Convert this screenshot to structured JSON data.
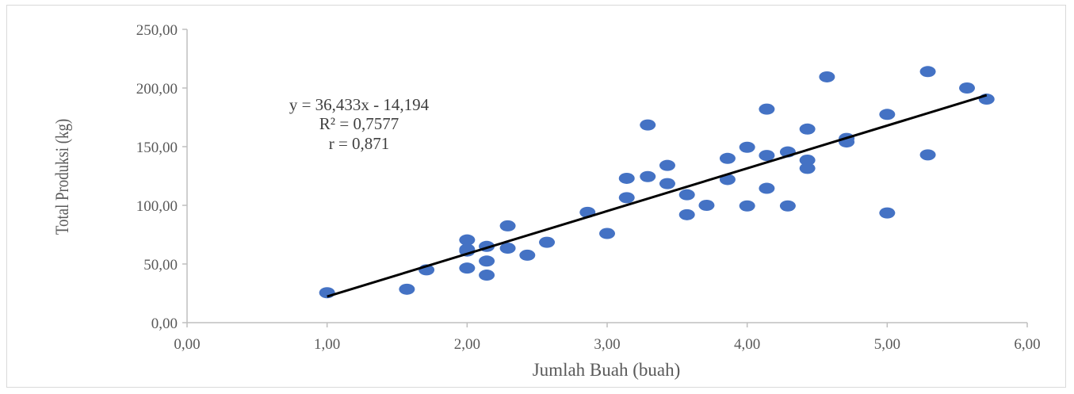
{
  "chart_data": {
    "type": "scatter",
    "xlabel": "Jumlah Buah (buah)",
    "ylabel": "Total Produksi (kg)",
    "xlim": [
      0,
      6
    ],
    "ylim": [
      0,
      250
    ],
    "x_ticks": [
      "0,00",
      "1,00",
      "2,00",
      "3,00",
      "4,00",
      "5,00",
      "6,00"
    ],
    "y_ticks": [
      "0,00",
      "50,00",
      "100,00",
      "150,00",
      "200,00",
      "250,00"
    ],
    "grid": false,
    "marker_color": "#4472C4",
    "trendline_color": "#000000",
    "annotation": [
      "y = 36,433x - 14,194",
      "R² = 0,7577",
      "r = 0,871"
    ],
    "trendline": {
      "slope": 36.433,
      "intercept": -14.194,
      "x_range": [
        1.0,
        5.71
      ]
    },
    "series": [
      {
        "points": [
          [
            1.0,
            25.5
          ],
          [
            1.57,
            28.5
          ],
          [
            1.71,
            45.0
          ],
          [
            2.0,
            70.5
          ],
          [
            2.0,
            62.5
          ],
          [
            2.0,
            61.0
          ],
          [
            2.0,
            46.5
          ],
          [
            2.14,
            65.0
          ],
          [
            2.14,
            52.5
          ],
          [
            2.14,
            40.5
          ],
          [
            2.29,
            82.5
          ],
          [
            2.29,
            63.5
          ],
          [
            2.43,
            57.5
          ],
          [
            2.57,
            68.5
          ],
          [
            2.86,
            94.0
          ],
          [
            3.0,
            76.0
          ],
          [
            3.14,
            123.0
          ],
          [
            3.14,
            106.5
          ],
          [
            3.29,
            124.5
          ],
          [
            3.29,
            168.5
          ],
          [
            3.43,
            134.0
          ],
          [
            3.43,
            118.5
          ],
          [
            3.57,
            109.0
          ],
          [
            3.57,
            92.0
          ],
          [
            3.71,
            100.0
          ],
          [
            3.86,
            140.0
          ],
          [
            3.86,
            122.0
          ],
          [
            4.0,
            149.5
          ],
          [
            4.0,
            99.5
          ],
          [
            4.14,
            182.0
          ],
          [
            4.14,
            142.5
          ],
          [
            4.14,
            114.5
          ],
          [
            4.29,
            145.5
          ],
          [
            4.29,
            99.5
          ],
          [
            4.43,
            165.0
          ],
          [
            4.43,
            138.5
          ],
          [
            4.43,
            131.5
          ],
          [
            4.57,
            209.5
          ],
          [
            4.71,
            157.0
          ],
          [
            4.71,
            154.0
          ],
          [
            5.0,
            177.5
          ],
          [
            5.0,
            93.5
          ],
          [
            5.29,
            214.0
          ],
          [
            5.29,
            143.0
          ],
          [
            5.57,
            200.0
          ],
          [
            5.71,
            190.5
          ]
        ]
      }
    ]
  }
}
